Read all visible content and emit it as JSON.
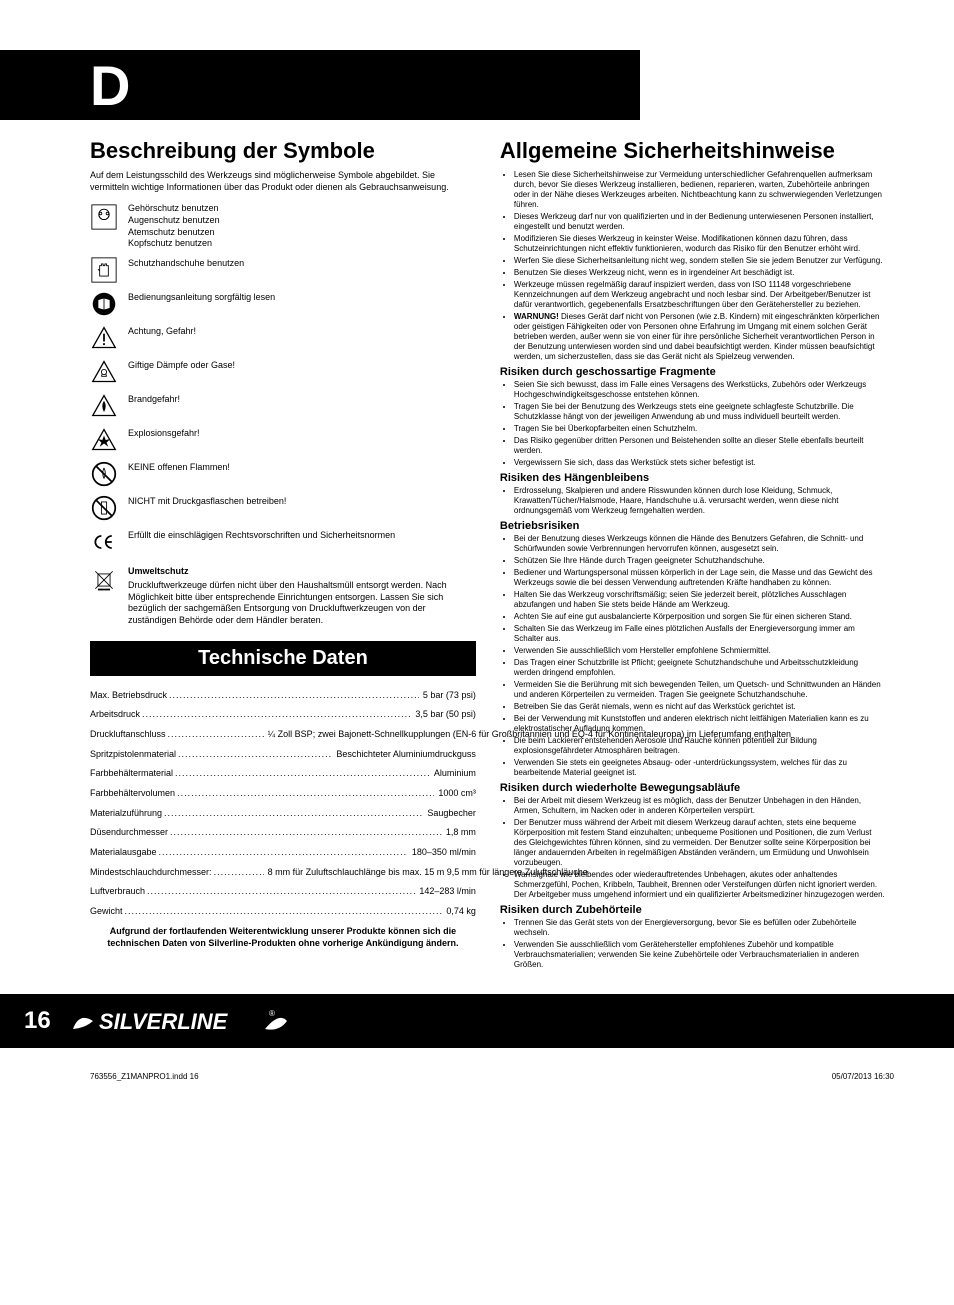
{
  "lang_letter": "D",
  "left": {
    "h1": "Beschreibung der Symbole",
    "intro": "Auf dem Leistungsschild des Werkzeugs sind möglicherweise Symbole abgebildet. Sie vermitteln wichtige Informationen über das Produkt oder dienen als Gebrauchsanweisung.",
    "symbols": {
      "ppe1": "Gehörschutz benutzen",
      "ppe2": "Augenschutz benutzen",
      "ppe3": "Atemschutz benutzen",
      "ppe4": "Kopfschutz benutzen",
      "gloves": "Schutzhandschuhe benutzen",
      "manual": "Bedienungsanleitung sorgfältig lesen",
      "warning": "Achtung, Gefahr!",
      "toxic": "Giftige Dämpfe oder Gase!",
      "fire": "Brandgefahr!",
      "explosion": "Explosionsgefahr!",
      "noflame": "KEINE offenen Flammen!",
      "nogas": "NICHT mit Druckgasflaschen betreiben!",
      "ce": "Erfüllt die einschlägigen Rechtsvorschriften und Sicherheitsnormen"
    },
    "env_title": "Umweltschutz",
    "env_text": "Druckluftwerkzeuge dürfen nicht über den Haushaltsmüll entsorgt werden. Nach Möglichkeit bitte über entsprechende Einrichtungen entsorgen. Lassen Sie sich bezüglich der sachgemäßen Entsorgung von Druckluftwerkzeugen von der zuständigen Behörde oder dem Händler beraten.",
    "tech_title": "Technische Daten",
    "tech": [
      {
        "l": "Max. Betriebsdruck",
        "v": "5 bar (73 psi)"
      },
      {
        "l": "Arbeitsdruck",
        "v": "3,5 bar (50 psi)"
      },
      {
        "l": "Druckluftanschluss",
        "v": "¼ Zoll BSP; zwei Bajonett-Schnellkupplungen (EN-6 für Großbritannien und EQ-4 für Kontinentaleuropa) im Lieferumfang enthalten"
      },
      {
        "l": "Spritzpistolenmaterial",
        "v": "Beschichteter Aluminiumdruckguss"
      },
      {
        "l": "Farbbehältermaterial",
        "v": "Aluminium"
      },
      {
        "l": "Farbbehältervolumen",
        "v": "1000 cm³"
      },
      {
        "l": "Materialzuführung",
        "v": "Saugbecher"
      },
      {
        "l": "Düsendurchmesser",
        "v": "1,8 mm"
      },
      {
        "l": "Materialausgabe",
        "v": "180–350 ml/min"
      },
      {
        "l": "Mindestschlauchdurchmesser:",
        "v": "8 mm für Zuluftschlauchlänge bis max. 15 m 9,5 mm für längere Zuluftschläuche"
      },
      {
        "l": "Luftverbrauch",
        "v": "142–283 l/min"
      },
      {
        "l": "Gewicht",
        "v": "0,74 kg"
      }
    ],
    "tech_note": "Aufgrund der fortlaufenden Weiterentwicklung unserer Produkte können sich die technischen Daten von Silverline-Produkten ohne vorherige Ankündigung ändern."
  },
  "right": {
    "h1": "Allgemeine Sicherheitshinweise",
    "general": [
      "Lesen Sie diese Sicherheitshinweise zur Vermeidung unterschiedlicher Gefahrenquellen aufmerksam durch, bevor Sie dieses Werkzeug installieren, bedienen, reparieren, warten, Zubehörteile anbringen oder in der Nähe dieses Werkzeuges arbeiten. Nichtbeachtung kann zu schwerwiegenden Verletzungen führen.",
      "Dieses Werkzeug darf nur von qualifizierten und in der Bedienung unterwiesenen Personen installiert, eingestellt und benutzt werden.",
      "Modifizieren Sie dieses Werkzeug in keinster Weise. Modifikationen können dazu führen, dass Schutzeinrichtungen nicht effektiv funktionieren, wodurch das Risiko für den Benutzer erhöht wird.",
      "Werfen Sie diese Sicherheitsanleitung nicht weg, sondern stellen Sie sie jedem Benutzer zur Verfügung.",
      "Benutzen Sie dieses Werkzeug nicht, wenn es in irgendeiner Art beschädigt ist.",
      "Werkzeuge müssen regelmäßig darauf inspiziert werden, dass von ISO 11148 vorgeschriebene Kennzeichnungen auf dem Werkzeug angebracht und noch lesbar sind. Der Arbeitgeber/Benutzer ist dafür verantwortlich, gegebenenfalls Ersatzbeschriftungen über den Gerätehersteller zu beziehen."
    ],
    "warnung_label": "WARNUNG!",
    "warnung_text": "Dieses Gerät darf nicht von Personen (wie z.B. Kindern) mit eingeschränkten körperlichen oder geistigen Fähigkeiten oder von Personen ohne Erfahrung im Umgang mit einem solchen Gerät betrieben werden, außer wenn sie von einer für ihre persönliche Sicherheit verantwortlichen Person in der Benutzung unterwiesen worden sind und dabei beaufsichtigt werden. Kinder müssen beaufsichtigt werden, um sicherzustellen, dass sie das Gerät nicht als Spielzeug verwenden.",
    "sections": [
      {
        "title": "Risiken durch geschossartige Fragmente",
        "items": [
          "Seien Sie sich bewusst, dass im Falle eines Versagens des Werkstücks, Zubehörs oder Werkzeugs Hochgeschwindigkeitsgeschosse entstehen können.",
          "Tragen Sie bei der Benutzung des Werkzeugs stets eine geeignete schlagfeste Schutzbrille. Die Schutzklasse hängt von der jeweiligen Anwendung ab und muss individuell beurteilt werden.",
          "Tragen Sie bei Überkopfarbeiten einen Schutzhelm.",
          "Das Risiko gegenüber dritten Personen und Beistehenden sollte an dieser Stelle ebenfalls beurteilt werden.",
          "Vergewissern Sie sich, dass das Werkstück stets sicher befestigt ist."
        ]
      },
      {
        "title": "Risiken des Hängenbleibens",
        "items": [
          "Erdrosselung, Skalpieren und andere Risswunden können durch lose Kleidung, Schmuck, Krawatten/Tücher/Halsmode, Haare, Handschuhe u.ä. verursacht werden, wenn diese nicht ordnungsgemäß vom Werkzeug ferngehalten werden."
        ]
      },
      {
        "title": "Betriebsrisiken",
        "items": [
          "Bei der Benutzung dieses Werkzeugs können die Hände des Benutzers Gefahren, die Schnitt- und Schürfwunden sowie Verbrennungen hervorrufen können, ausgesetzt sein.",
          "Schützen Sie Ihre Hände durch Tragen geeigneter Schutzhandschuhe.",
          "Bediener und Wartungspersonal müssen körperlich in der Lage sein, die Masse und das Gewicht des Werkzeugs sowie die bei dessen Verwendung auftretenden Kräfte handhaben zu können.",
          "Halten Sie das Werkzeug vorschriftsmäßig; seien Sie jederzeit bereit, plötzliches Ausschlagen abzufangen und haben Sie stets beide Hände am Werkzeug.",
          "Achten Sie auf eine gut ausbalancierte Körperposition und sorgen Sie für einen sicheren Stand.",
          "Schalten Sie das Werkzeug im Falle eines plötzlichen Ausfalls der Energieversorgung immer am Schalter aus.",
          "Verwenden Sie ausschließlich vom Hersteller empfohlene Schmiermittel.",
          "Das Tragen einer Schutzbrille ist Pflicht; geeignete Schutzhandschuhe und Arbeitsschutzkleidung werden dringend empfohlen.",
          "Vermeiden Sie die Berührung mit sich bewegenden Teilen, um Quetsch- und Schnittwunden an Händen und anderen Körperteilen zu vermeiden. Tragen Sie geeignete Schutzhandschuhe.",
          "Betreiben Sie das Gerät niemals, wenn es nicht auf das Werkstück gerichtet ist.",
          "Bei der Verwendung mit Kunststoffen und anderen elektrisch nicht leitfähigen Materialien kann es zu elektrostatischer Aufladung kommen.",
          "Die beim Lackieren entstehenden Aerosole und Rauche können potentiell zur Bildung explosionsgefährdeter Atmosphären beitragen.",
          "Verwenden Sie stets ein geeignetes Absaug- oder -unterdrückungssystem, welches für das zu bearbeitende Material geeignet ist."
        ]
      },
      {
        "title": "Risiken durch wiederholte Bewegungsabläufe",
        "items": [
          "Bei der Arbeit mit diesem Werkzeug ist es möglich, dass der Benutzer Unbehagen in den Händen, Armen, Schultern, im Nacken oder in anderen Körperteilen verspürt.",
          "Der Benutzer muss während der Arbeit mit diesem Werkzeug darauf achten, stets eine bequeme Körperposition mit festem Stand einzuhalten; unbequeme Positionen und Positionen, die zum Verlust des Gleichgewichtes führen können, sind zu vermeiden. Der Benutzer sollte seine Körperposition bei länger andauernden Arbeiten in regelmäßigen Abständen verändern, um Ermüdung und Unwohlsein vorzubeugen.",
          "Warnsignale wie bleibendes oder wiederauftretendes Unbehagen, akutes oder anhaltendes Schmerzgefühl, Pochen, Kribbeln, Taubheit, Brennen oder Versteifungen dürfen nicht ignoriert werden. Der Arbeitgeber muss umgehend informiert und ein qualifizierter Arbeitsmediziner hinzugezogen werden."
        ]
      },
      {
        "title": "Risiken durch Zubehörteile",
        "items": [
          "Trennen Sie das Gerät stets von der Energieversorgung, bevor Sie es befüllen oder Zubehörteile wechseln.",
          "Verwenden Sie ausschließlich vom Gerätehersteller empfohlenes Zubehör und kompatible Verbrauchsmaterialien; verwenden Sie keine Zubehörteile oder Verbrauchsmaterialien in anderen Größen."
        ]
      }
    ]
  },
  "footer": {
    "page": "16",
    "brand": "SILVERLINE",
    "file": "763556_Z1MANPRO1.indd   16",
    "ts": "05/07/2013   16:30"
  }
}
